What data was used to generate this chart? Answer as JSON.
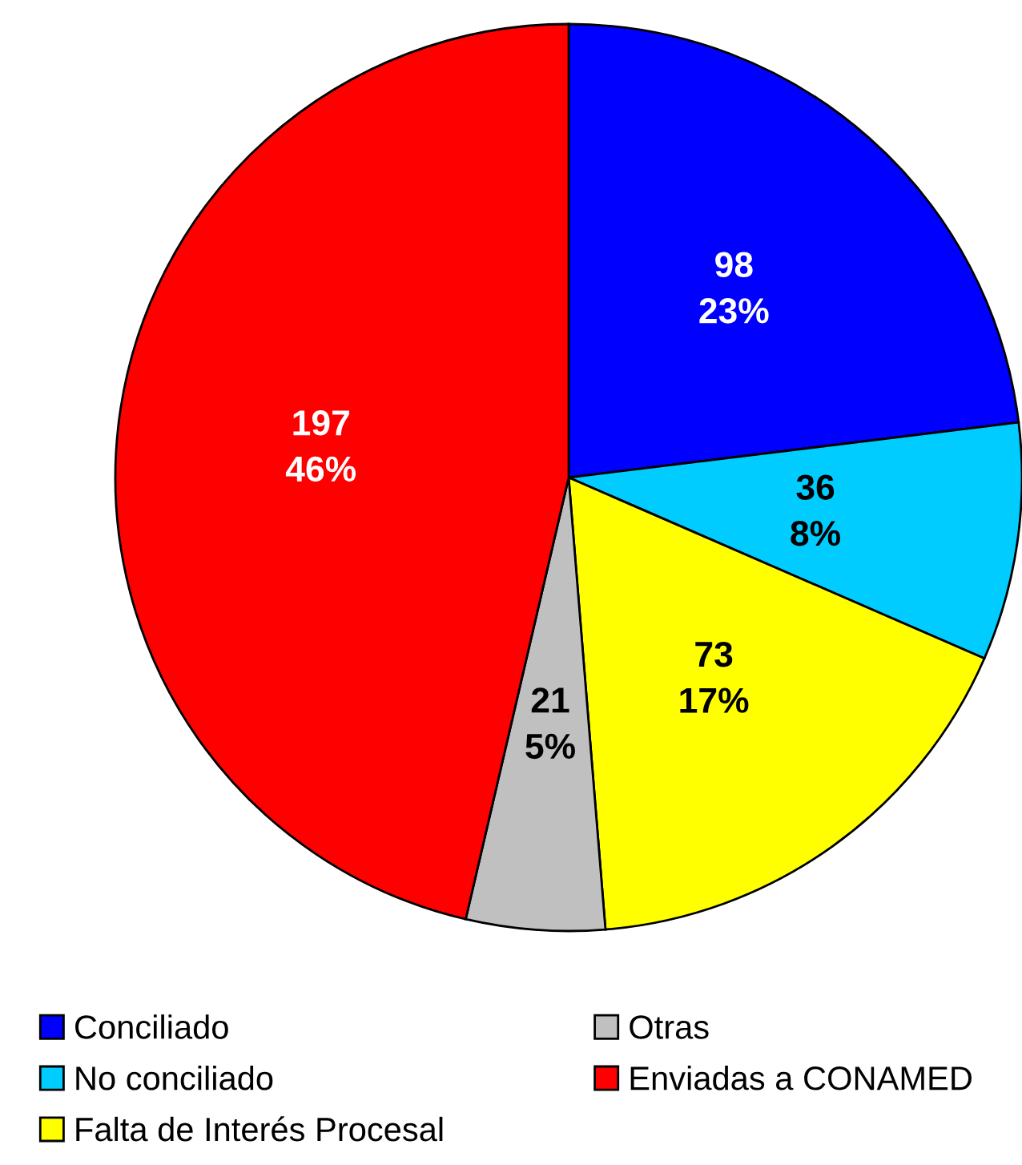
{
  "chart_data": {
    "type": "pie",
    "categories": [
      "Conciliado",
      "No conciliado",
      "Falta de Interés Procesal",
      "Otras",
      "Enviadas a CONAMED"
    ],
    "values": [
      98,
      36,
      73,
      21,
      197
    ],
    "value_labels": [
      "98\n23%",
      "36\n8%",
      "73\n17%",
      "21\n5%",
      "197\n46%"
    ],
    "colors": [
      "#0000ff",
      "#00ccff",
      "#ffff00",
      "#c0c0c0",
      "#ff0000"
    ],
    "legend": "bottom"
  }
}
